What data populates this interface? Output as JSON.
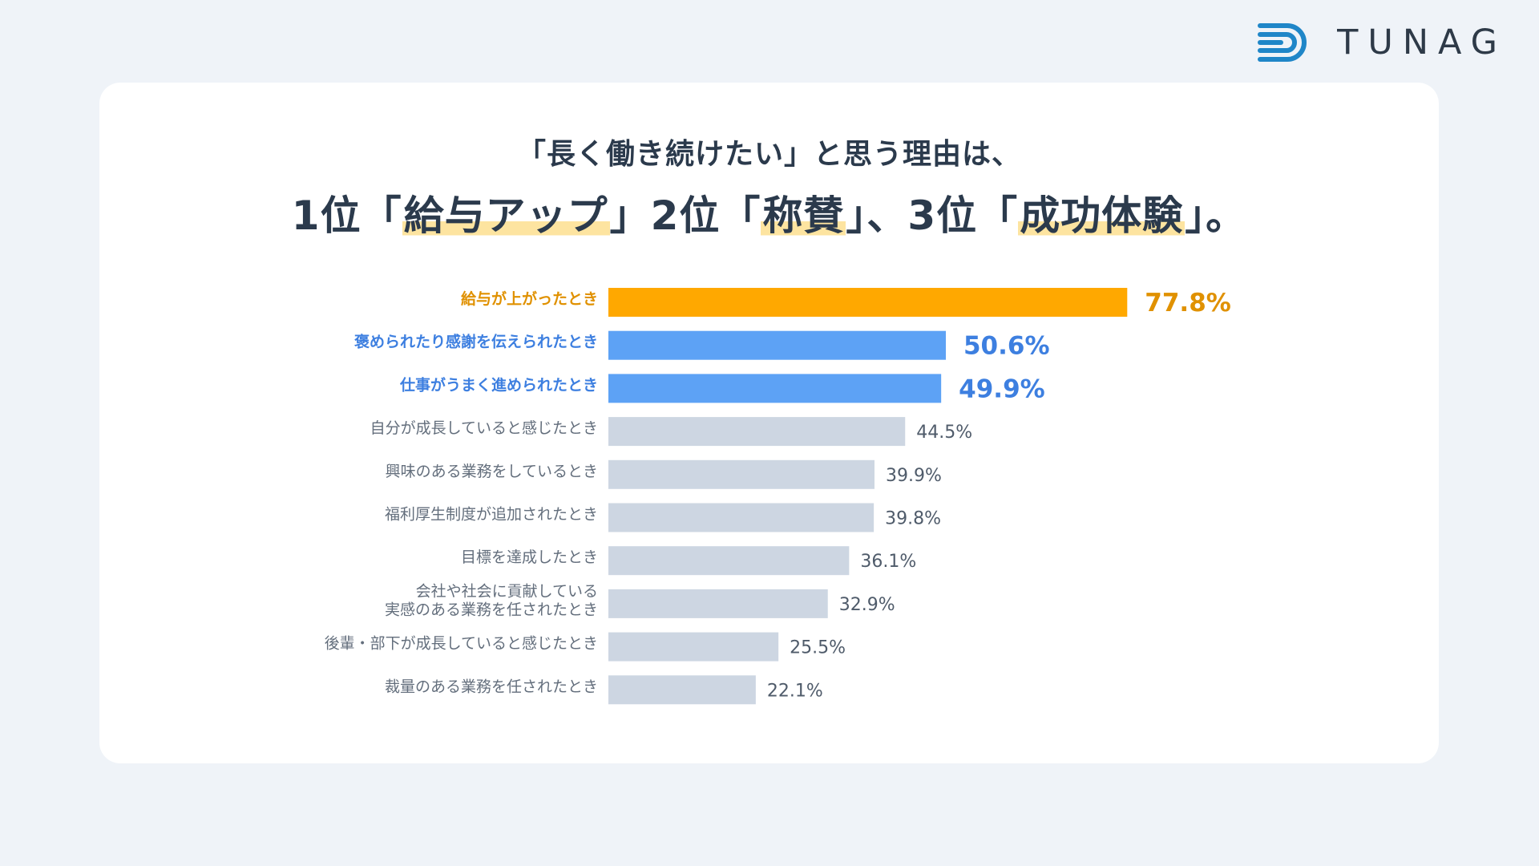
{
  "brand": {
    "name": "TUNAG",
    "colors": {
      "logo_blue": "#1f86c8",
      "logo_text": "#2e3a48"
    }
  },
  "headline": {
    "line1": "「長く働き続けたい」と思う理由は、",
    "line2": {
      "rank1_prefix": "1位「",
      "rank1_item": "給与アップ",
      "rank1_suffix": "」",
      "rank2_prefix": "2位「",
      "rank2_item": "称賛",
      "rank2_suffix": "」、",
      "rank3_prefix": "3位「",
      "rank3_item": "成功体験",
      "rank3_suffix": "」。"
    }
  },
  "colors": {
    "top1": "#ffa800",
    "top23": "#5da2f5",
    "rest": "#cdd6e2",
    "top1_text": "#e09100",
    "top23_text": "#3d7fe0",
    "rest_text": "#636e7c"
  },
  "chart_data": {
    "type": "bar",
    "orientation": "horizontal",
    "title": "",
    "xlabel": "",
    "ylabel": "",
    "xlim": [
      0,
      100
    ],
    "unit": "%",
    "categories": [
      [
        "給与が上がったとき"
      ],
      [
        "褒められたり感謝を伝えられたとき"
      ],
      [
        "仕事がうまく進められたとき"
      ],
      [
        "自分が成長していると感じたとき"
      ],
      [
        "興味のある業務をしているとき"
      ],
      [
        "福利厚生制度が追加されたとき"
      ],
      [
        "目標を達成したとき"
      ],
      [
        "会社や社会に貢献している",
        "実感のある業務を任されたとき"
      ],
      [
        "後輩・部下が成長していると感じたとき"
      ],
      [
        "裁量のある業務を任されたとき"
      ]
    ],
    "values": [
      77.8,
      50.6,
      49.9,
      44.5,
      39.9,
      39.8,
      36.1,
      32.9,
      25.5,
      22.1
    ],
    "value_labels": [
      "77.8%",
      "50.6%",
      "49.9%",
      "44.5%",
      "39.9%",
      "39.8%",
      "36.1%",
      "32.9%",
      "25.5%",
      "22.1%"
    ],
    "highlight": [
      "orange",
      "blue",
      "blue",
      "none",
      "none",
      "none",
      "none",
      "none",
      "none",
      "none"
    ]
  }
}
